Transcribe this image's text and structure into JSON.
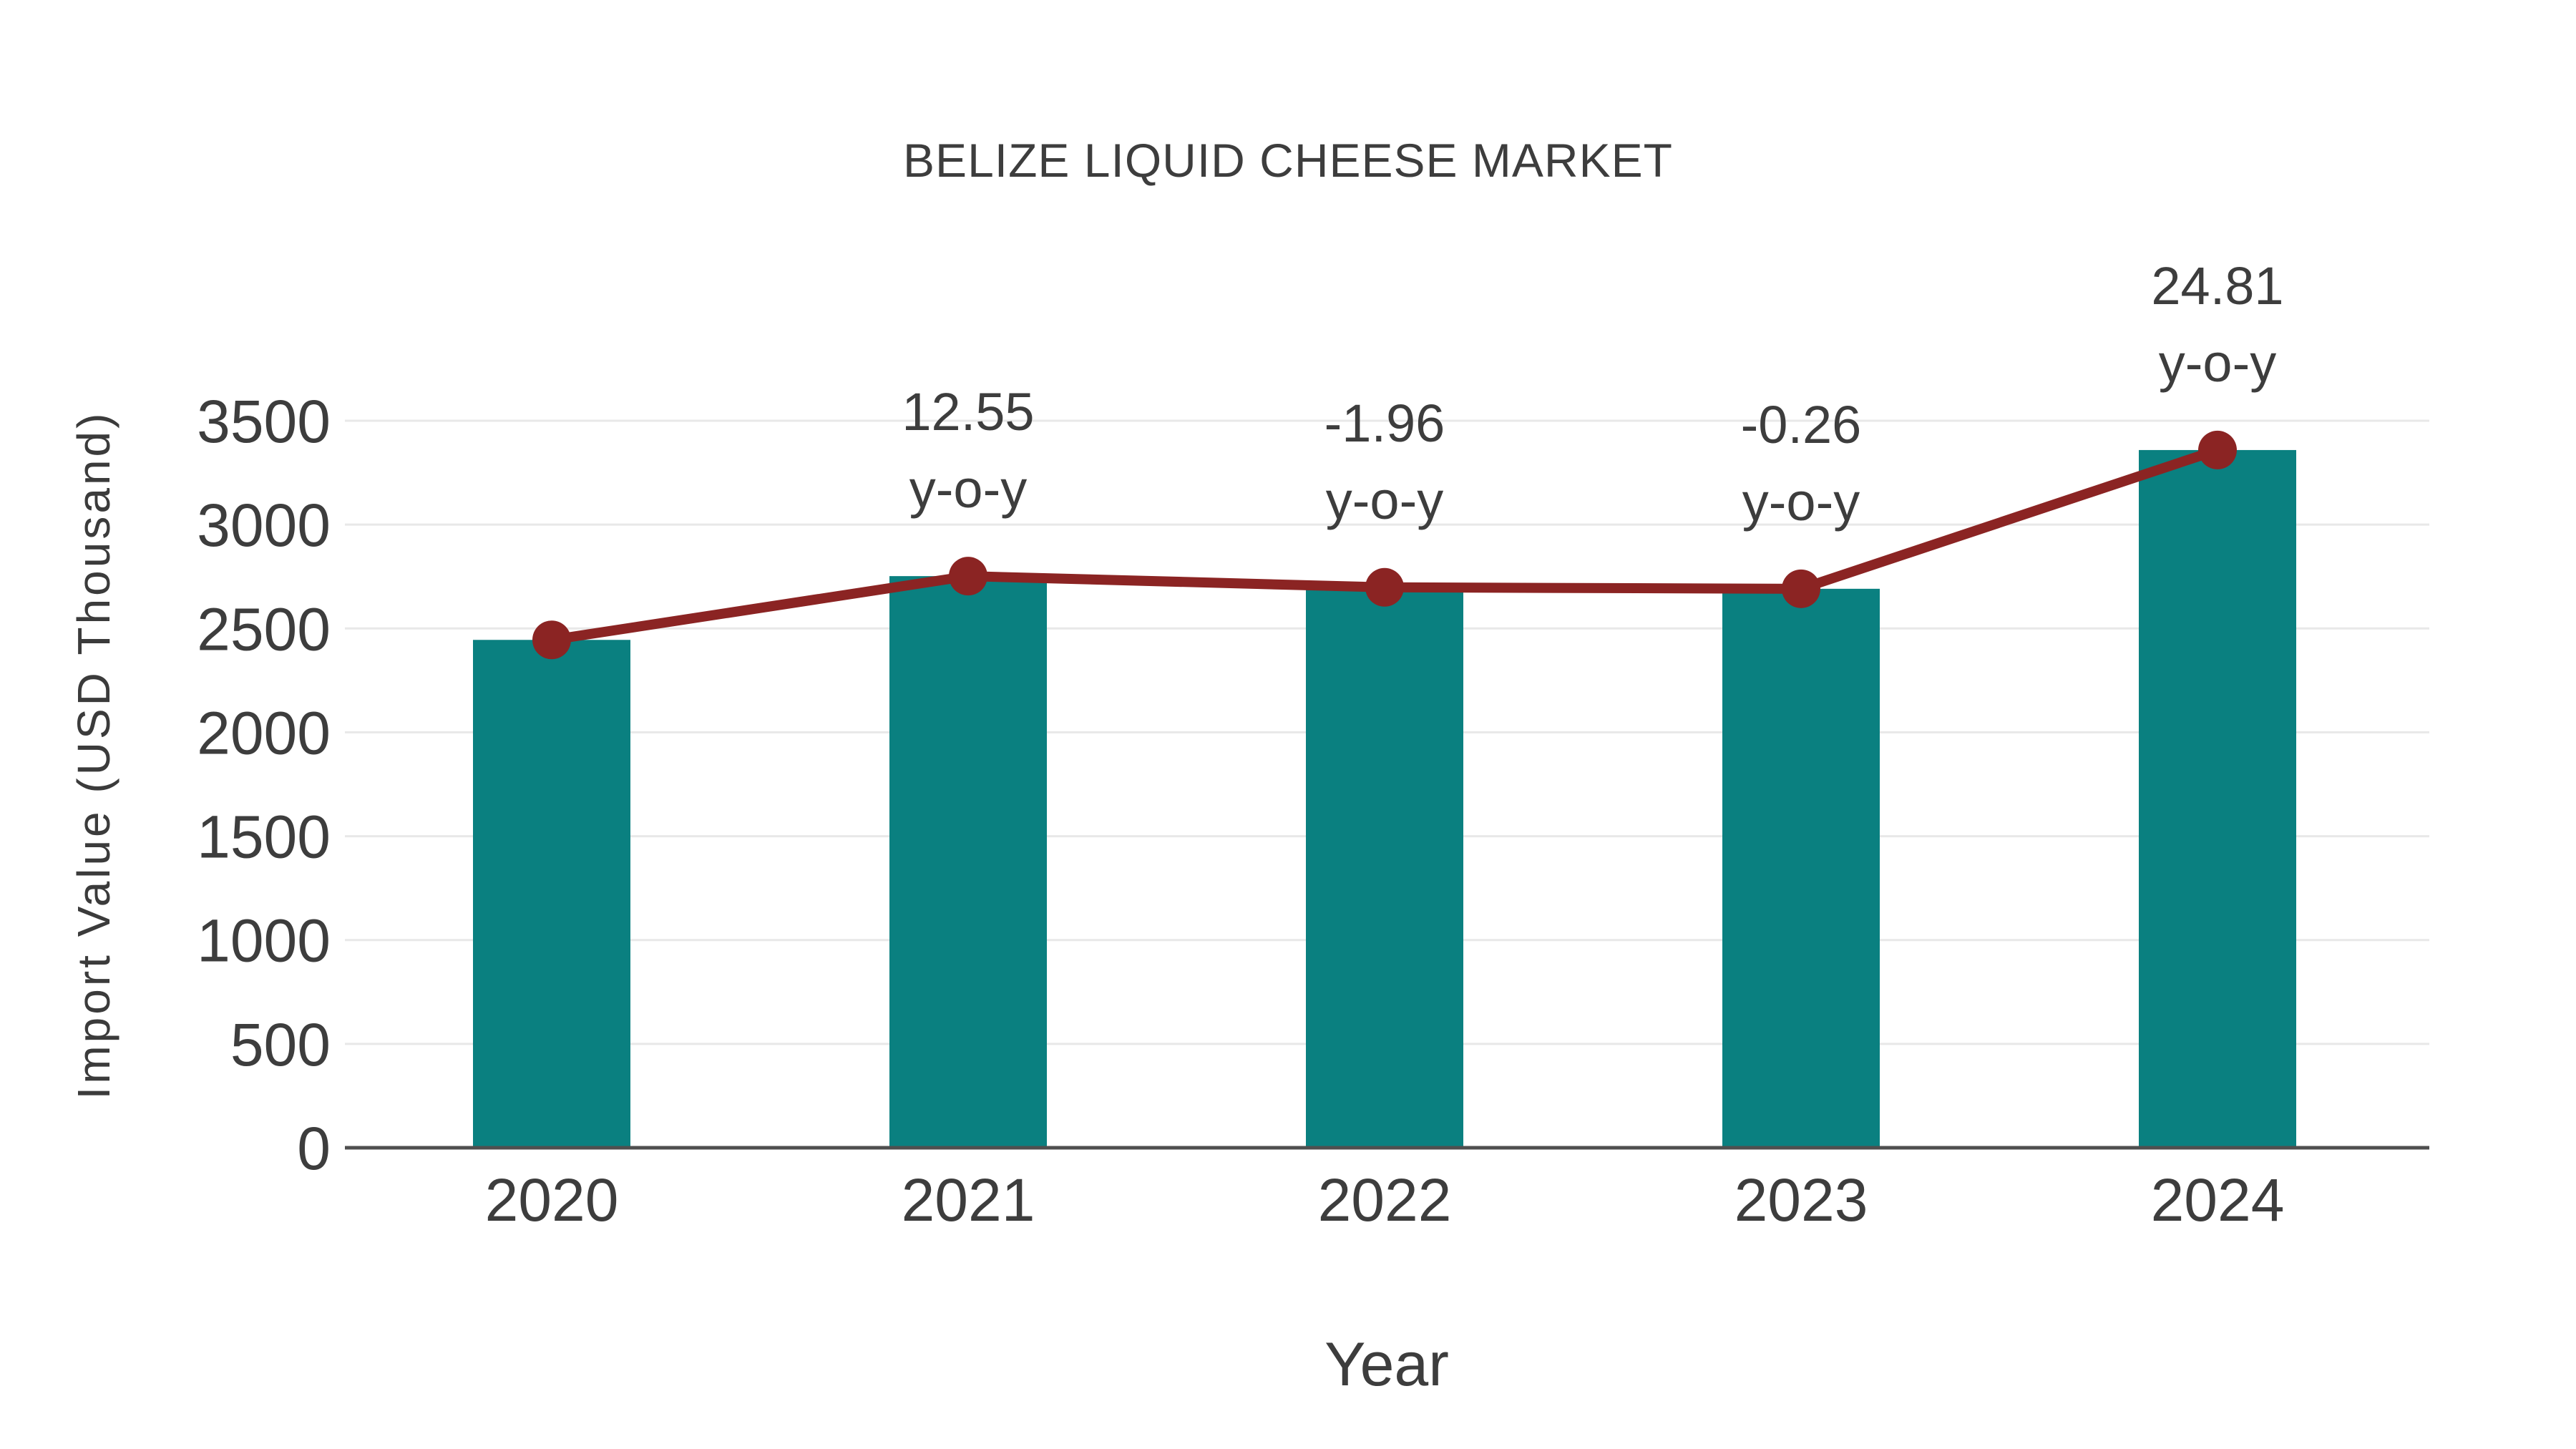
{
  "chart_data": {
    "type": "bar",
    "title": "BELIZE LIQUID CHEESE MARKET",
    "xlabel": "Year",
    "ylabel": "Import Value (USD Thousand)",
    "categories": [
      "2020",
      "2021",
      "2022",
      "2023",
      "2024"
    ],
    "series": [
      {
        "name": "Import Value bars",
        "type": "bar",
        "values": [
          2445,
          2752,
          2698,
          2691,
          3359
        ]
      },
      {
        "name": "Import Value trend line",
        "type": "line",
        "values": [
          2445,
          2752,
          2698,
          2691,
          3359
        ]
      }
    ],
    "annotations": [
      {
        "category": "2021",
        "line1": "12.55",
        "line2": "y-o-y"
      },
      {
        "category": "2022",
        "line1": "-1.96",
        "line2": "y-o-y"
      },
      {
        "category": "2023",
        "line1": "-0.26",
        "line2": "y-o-y"
      },
      {
        "category": "2024",
        "line1": "24.81",
        "line2": "y-o-y"
      }
    ],
    "yticks": [
      0,
      500,
      1000,
      1500,
      2000,
      2500,
      3000,
      3500
    ],
    "ylim": [
      0,
      3500
    ],
    "grid": true,
    "legend": false,
    "colors": {
      "bar": "#0a8080",
      "line": "#8b2423",
      "marker": "#8b2423",
      "text": "#3d3d3d",
      "grid": "#e8e8e8",
      "axis": "#4f4f4f"
    }
  }
}
